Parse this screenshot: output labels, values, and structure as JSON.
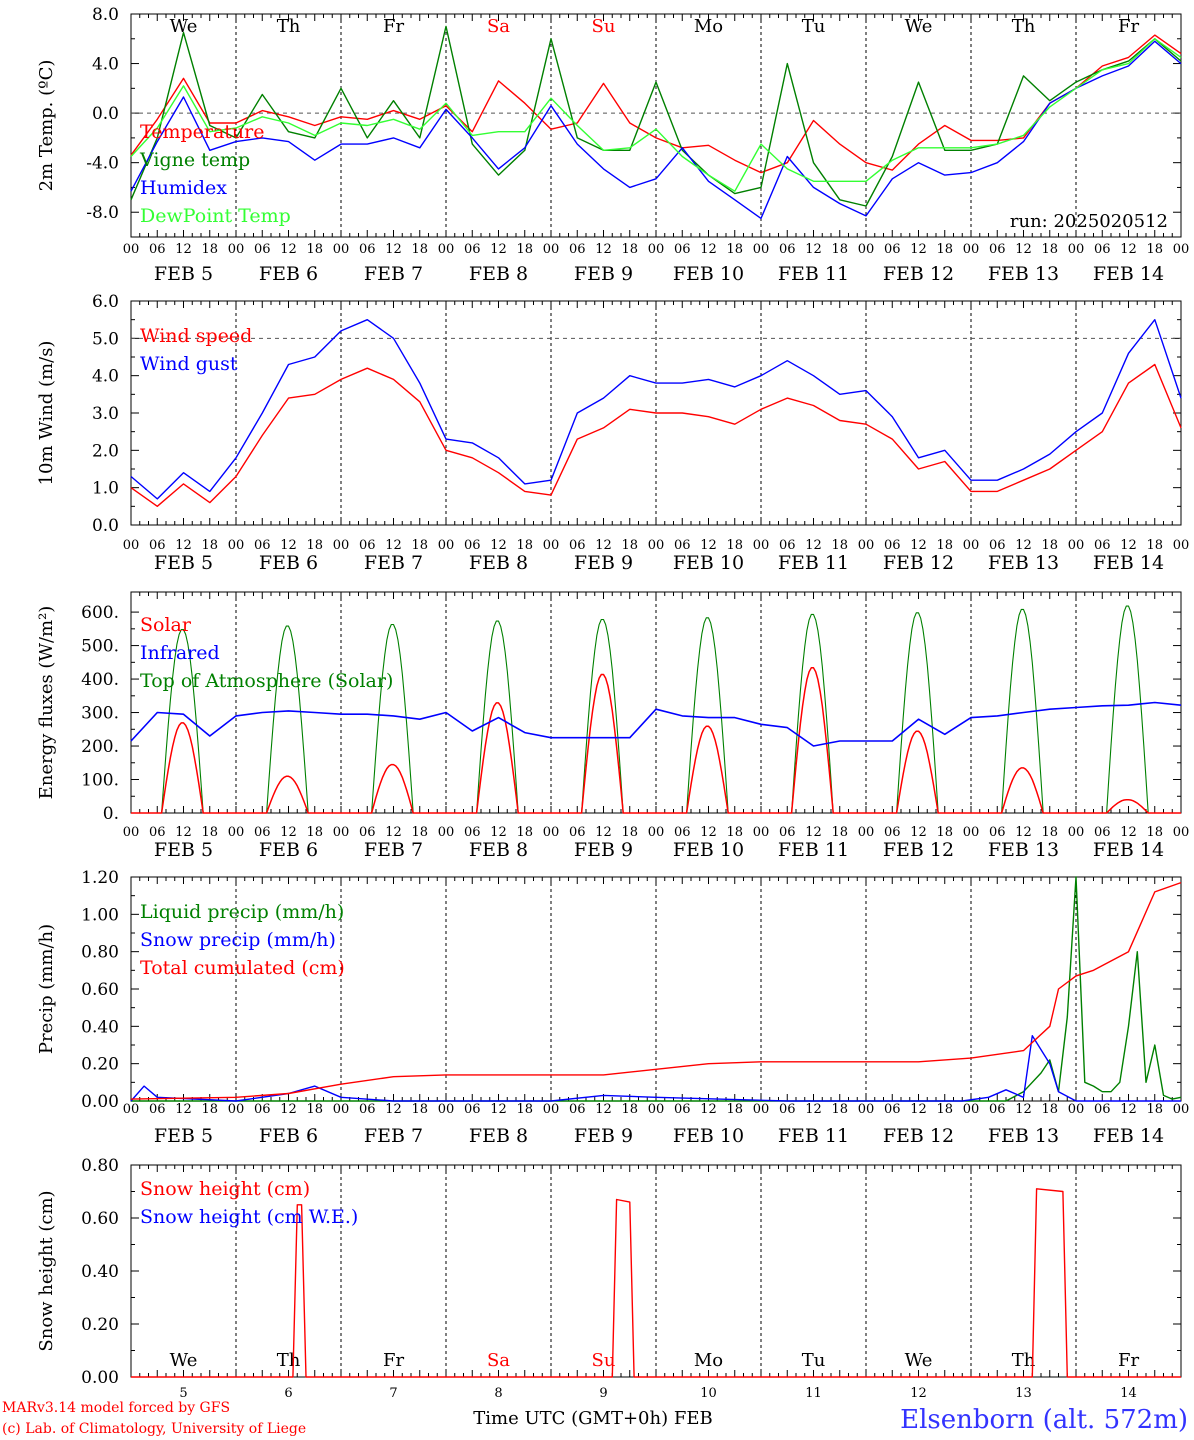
{
  "meteogram": {
    "run_label": "run: 2025020512",
    "footer_line1": "MARv3.14 model forced by GFS",
    "footer_line2": "(c) Lab. of Climatology, University of Liege",
    "x_title": "Time UTC (GMT+0h) FEB",
    "station": "Elsenborn (alt. 572m)",
    "hour_ticks": [
      "00",
      "06",
      "12",
      "18"
    ],
    "final_hour_tick": "00",
    "date_labels": [
      "FEB  5",
      "FEB  6",
      "FEB  7",
      "FEB  8",
      "FEB  9",
      "FEB 10",
      "FEB 11",
      "FEB 12",
      "FEB 13",
      "FEB 14"
    ],
    "weekdays": [
      "We",
      "Th",
      "Fr",
      "Sa",
      "Su",
      "Mo",
      "Tu",
      "We",
      "Th",
      "Fr"
    ],
    "weekend_days": [
      "Sa",
      "Su"
    ],
    "day_numbers": [
      "5",
      "6",
      "7",
      "8",
      "9",
      "10",
      "11",
      "12",
      "13",
      "14"
    ]
  },
  "chart_data": [
    {
      "type": "line",
      "ylabel": "2m Temp. (ºC)",
      "ylim": [
        -10,
        8
      ],
      "yticks": [
        "8.0",
        "4.0",
        "0.0",
        "-4.0",
        "-8.0"
      ],
      "ytick_values": [
        8,
        4,
        0,
        -4,
        -8
      ],
      "dashed_reference": 0,
      "x_hours": [
        0,
        6,
        12,
        18,
        24,
        30,
        36,
        42,
        48,
        54,
        60,
        66,
        72,
        78,
        84,
        90,
        96,
        102,
        108,
        114,
        120,
        126,
        132,
        138,
        144,
        150,
        156,
        162,
        168,
        174,
        180,
        186,
        192,
        198,
        204,
        210,
        216,
        222,
        228,
        234,
        240
      ],
      "series": [
        {
          "name": "Temperature",
          "color": "#ff0000",
          "values": [
            -3.4,
            -0.5,
            2.8,
            -0.8,
            -0.8,
            0.2,
            -0.3,
            -1.0,
            -0.3,
            -0.5,
            0.2,
            -0.5,
            0.6,
            -1.5,
            2.6,
            0.8,
            -1.3,
            -0.8,
            2.4,
            -0.8,
            -2.0,
            -2.8,
            -2.6,
            -3.8,
            -4.8,
            -4.0,
            -0.6,
            -2.5,
            -4.0,
            -4.6,
            -2.5,
            -1.0,
            -2.2,
            -2.2,
            -2.0,
            0.8,
            2.0,
            3.8,
            4.5,
            6.3,
            4.8
          ]
        },
        {
          "name": "Vigne temp",
          "color": "#008000",
          "values": [
            -7.0,
            -2.0,
            6.5,
            -1.0,
            -2.0,
            1.5,
            -1.5,
            -2.0,
            2.0,
            -2.0,
            1.0,
            -2.0,
            7.0,
            -2.5,
            -5.0,
            -3.0,
            6.0,
            -2.0,
            -3.0,
            -3.0,
            2.5,
            -3.0,
            -5.0,
            -6.5,
            -6.0,
            4.0,
            -4.0,
            -7.0,
            -7.5,
            -3.5,
            2.5,
            -3.0,
            -3.0,
            -2.5,
            3.0,
            1.0,
            2.5,
            3.5,
            4.2,
            6.0,
            4.2
          ]
        },
        {
          "name": "Humidex",
          "color": "#0000ff",
          "values": [
            -6.3,
            -2.3,
            1.3,
            -3.0,
            -2.3,
            -2.0,
            -2.3,
            -3.8,
            -2.5,
            -2.5,
            -2.0,
            -2.8,
            0.3,
            -2.0,
            -4.5,
            -2.8,
            0.6,
            -2.5,
            -4.5,
            -6.0,
            -5.3,
            -2.8,
            -5.5,
            -7.0,
            -8.5,
            -3.5,
            -6.0,
            -7.3,
            -8.3,
            -5.3,
            -4.0,
            -5.0,
            -4.8,
            -4.0,
            -2.3,
            0.8,
            2.0,
            3.0,
            3.8,
            5.8,
            4.0
          ]
        },
        {
          "name": "DewPoint Temp",
          "color": "#33ff33",
          "values": [
            -3.5,
            -1.2,
            2.2,
            -1.5,
            -1.2,
            -0.3,
            -0.8,
            -1.8,
            -0.8,
            -1.0,
            -0.5,
            -1.3,
            0.8,
            -1.8,
            -1.5,
            -1.5,
            1.2,
            -1.0,
            -3.0,
            -2.8,
            -1.3,
            -3.5,
            -5.0,
            -6.3,
            -2.5,
            -4.5,
            -5.5,
            -5.5,
            -5.5,
            -3.8,
            -2.8,
            -2.8,
            -2.8,
            -2.5,
            -1.8,
            0.5,
            2.0,
            3.5,
            4.0,
            6.0,
            4.5
          ]
        }
      ]
    },
    {
      "type": "line",
      "ylabel": "10m Wind (m/s)",
      "ylim": [
        0,
        6
      ],
      "yticks": [
        "6.0",
        "5.0",
        "4.0",
        "3.0",
        "2.0",
        "1.0",
        "0.0"
      ],
      "ytick_values": [
        6,
        5,
        4,
        3,
        2,
        1,
        0
      ],
      "dashed_reference": 5,
      "x_hours": [
        0,
        6,
        12,
        18,
        24,
        30,
        36,
        42,
        48,
        54,
        60,
        66,
        72,
        78,
        84,
        90,
        96,
        102,
        108,
        114,
        120,
        126,
        132,
        138,
        144,
        150,
        156,
        162,
        168,
        174,
        180,
        186,
        192,
        198,
        204,
        210,
        216,
        222,
        228,
        234,
        240
      ],
      "series": [
        {
          "name": "Wind speed",
          "color": "#ff0000",
          "values": [
            1.0,
            0.5,
            1.1,
            0.6,
            1.3,
            2.4,
            3.4,
            3.5,
            3.9,
            4.2,
            3.9,
            3.3,
            2.0,
            1.8,
            1.4,
            0.9,
            0.8,
            2.3,
            2.6,
            3.1,
            3.0,
            3.0,
            2.9,
            2.7,
            3.1,
            3.4,
            3.2,
            2.8,
            2.7,
            2.3,
            1.5,
            1.7,
            0.9,
            0.9,
            1.2,
            1.5,
            2.0,
            2.5,
            3.8,
            4.3,
            2.6
          ]
        },
        {
          "name": "Wind gust",
          "color": "#0000ff",
          "values": [
            1.3,
            0.7,
            1.4,
            0.9,
            1.8,
            3.0,
            4.3,
            4.5,
            5.2,
            5.5,
            5.0,
            3.8,
            2.3,
            2.2,
            1.8,
            1.1,
            1.2,
            3.0,
            3.4,
            4.0,
            3.8,
            3.8,
            3.9,
            3.7,
            4.0,
            4.4,
            4.0,
            3.5,
            3.6,
            2.9,
            1.8,
            2.0,
            1.2,
            1.2,
            1.5,
            1.9,
            2.5,
            3.0,
            4.6,
            5.5,
            3.4
          ]
        }
      ]
    },
    {
      "type": "line",
      "ylabel": "Energy fluxes (W/m²)",
      "ylim": [
        0,
        660
      ],
      "yticks": [
        "600.",
        "500.",
        "400.",
        "300.",
        "200.",
        "100.",
        "0."
      ],
      "ytick_values": [
        600,
        500,
        400,
        300,
        200,
        100,
        0
      ],
      "daylight_start_hour": 7,
      "daylight_end_hour": 16.5,
      "toa_peaks": [
        550,
        560,
        565,
        575,
        580,
        585,
        595,
        600,
        610,
        620
      ],
      "solar_peaks": [
        270,
        110,
        145,
        330,
        415,
        260,
        435,
        245,
        135,
        40
      ],
      "series": [
        {
          "name": "Solar",
          "color": "#ff0000"
        },
        {
          "name": "Infrared",
          "color": "#0000ff",
          "x_hours": [
            0,
            6,
            12,
            18,
            24,
            30,
            36,
            42,
            48,
            54,
            60,
            66,
            72,
            78,
            84,
            90,
            96,
            102,
            108,
            114,
            120,
            126,
            132,
            138,
            144,
            150,
            156,
            162,
            168,
            174,
            180,
            186,
            192,
            198,
            204,
            210,
            216,
            222,
            228,
            234,
            240
          ],
          "values": [
            215,
            300,
            295,
            230,
            290,
            300,
            305,
            300,
            295,
            295,
            290,
            280,
            300,
            245,
            285,
            240,
            225,
            225,
            225,
            225,
            310,
            290,
            285,
            285,
            265,
            255,
            200,
            215,
            215,
            215,
            280,
            235,
            285,
            290,
            300,
            310,
            315,
            320,
            322,
            330,
            322
          ]
        },
        {
          "name": "Top of Atmosphere (Solar)",
          "color": "#008000"
        }
      ]
    },
    {
      "type": "line",
      "ylabel": "Precip (mm/h)",
      "ylim": [
        0,
        1.2
      ],
      "yticks": [
        "1.20",
        "1.00",
        "0.80",
        "0.60",
        "0.40",
        "0.20",
        "0.00"
      ],
      "ytick_values": [
        1.2,
        1.0,
        0.8,
        0.6,
        0.4,
        0.2,
        0.0
      ],
      "series": [
        {
          "name": "Liquid precip (mm/h)",
          "color": "#008000",
          "x_hours": [
            0,
            200,
            204,
            208,
            210,
            212,
            214,
            216,
            218,
            220,
            222,
            224,
            226,
            228,
            230,
            232,
            234,
            236,
            238,
            240
          ],
          "values": [
            0,
            0,
            0.05,
            0.15,
            0.22,
            0.05,
            0.45,
            1.2,
            0.1,
            0.08,
            0.05,
            0.05,
            0.1,
            0.4,
            0.8,
            0.1,
            0.3,
            0.03,
            0.01,
            0.02
          ]
        },
        {
          "name": "Snow precip (mm/h)",
          "color": "#0000ff",
          "x_hours": [
            0,
            3,
            6,
            24,
            36,
            42,
            48,
            60,
            96,
            108,
            120,
            150,
            190,
            196,
            200,
            204,
            206,
            210,
            212,
            216,
            240
          ],
          "values": [
            0,
            0.08,
            0.02,
            0,
            0.04,
            0.08,
            0.02,
            0,
            0,
            0.03,
            0.02,
            0,
            0,
            0.02,
            0.06,
            0.02,
            0.35,
            0.2,
            0.05,
            0,
            0
          ]
        },
        {
          "name": "Total cumulated (cm)",
          "color": "#ff0000",
          "x_hours": [
            0,
            24,
            36,
            48,
            60,
            72,
            96,
            108,
            120,
            132,
            144,
            180,
            192,
            204,
            210,
            212,
            216,
            220,
            228,
            234,
            240
          ],
          "values": [
            0.01,
            0.02,
            0.04,
            0.09,
            0.13,
            0.14,
            0.14,
            0.14,
            0.17,
            0.2,
            0.21,
            0.21,
            0.23,
            0.27,
            0.4,
            0.6,
            0.67,
            0.7,
            0.8,
            1.12,
            1.17
          ]
        }
      ]
    },
    {
      "type": "line",
      "ylabel": "Snow height (cm)",
      "ylim": [
        0,
        0.8
      ],
      "yticks": [
        "0.80",
        "0.60",
        "0.40",
        "0.20",
        "0.00"
      ],
      "ytick_values": [
        0.8,
        0.6,
        0.4,
        0.2,
        0.0
      ],
      "series": [
        {
          "name": "Snow height (cm)",
          "color": "#ff0000",
          "x_hours": [
            0,
            37,
            38,
            39,
            40,
            110,
            111,
            114,
            115,
            206,
            207,
            213,
            214,
            240
          ],
          "values": [
            0,
            0,
            0.65,
            0.65,
            0,
            0,
            0.67,
            0.66,
            0,
            0,
            0.71,
            0.7,
            0,
            0
          ]
        },
        {
          "name": "Snow height (cm W.E.)",
          "color": "#0000ff"
        }
      ]
    }
  ]
}
